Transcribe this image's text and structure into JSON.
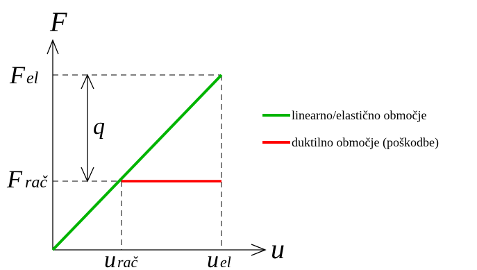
{
  "axes": {
    "y_symbol": "F",
    "x_symbol": "u"
  },
  "levels": {
    "force_elastic": {
      "main": "F",
      "sub": "el"
    },
    "force_design": {
      "main": "F",
      "sub": "rač"
    },
    "disp_design": {
      "main": "u",
      "sub": "rač"
    },
    "disp_elastic": {
      "main": "u",
      "sub": "el"
    }
  },
  "reduction_factor": "q",
  "legend": [
    {
      "label": "linearno/elastično območje",
      "color": "#00b400"
    },
    {
      "label": "duktilno območje (poškodbe)",
      "color": "#ff0000"
    }
  ],
  "colors": {
    "elastic_line": "#00b400",
    "ductile_line": "#ff0000",
    "axis": "#000000"
  }
}
